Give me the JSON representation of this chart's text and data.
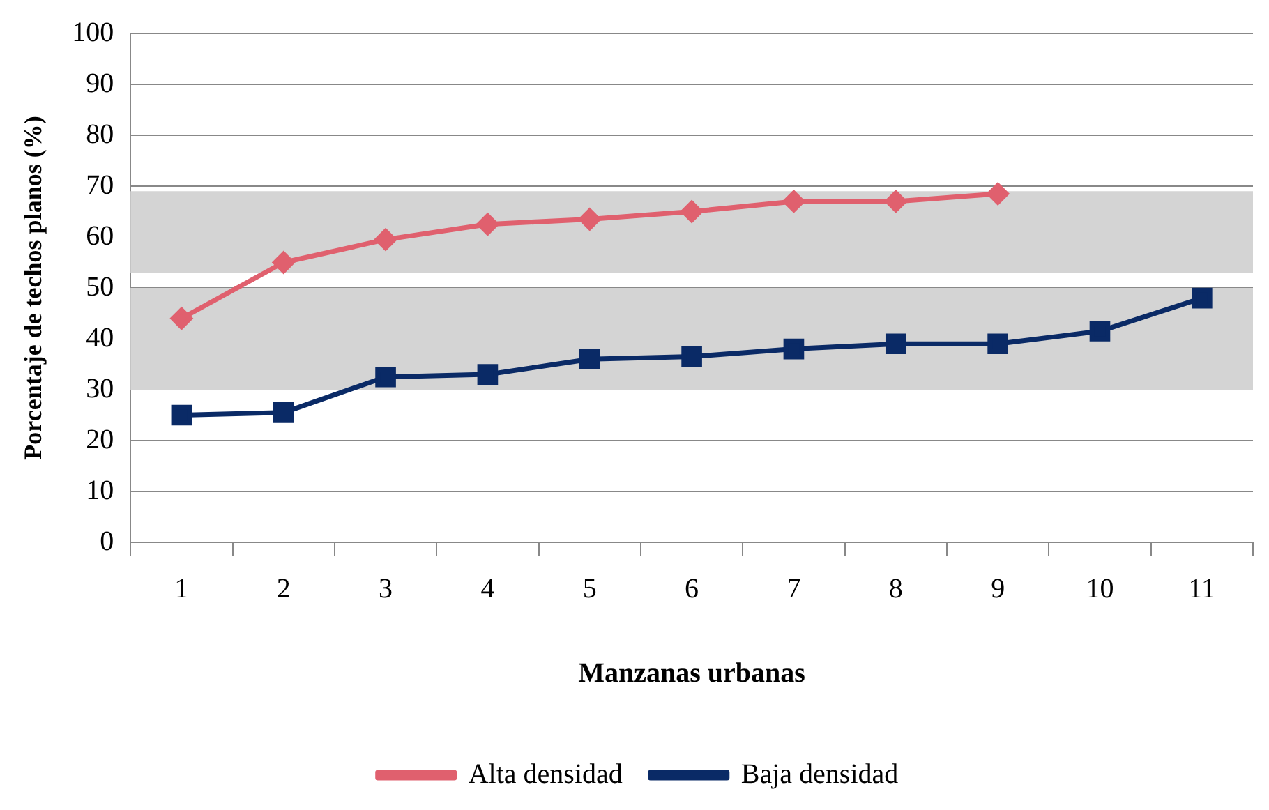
{
  "chart_data": {
    "type": "line",
    "xlabel": "Manzanas urbanas",
    "ylabel": "Porcentaje de techos planos (%)",
    "categories": [
      "1",
      "2",
      "3",
      "4",
      "5",
      "6",
      "7",
      "8",
      "9",
      "10",
      "11"
    ],
    "series": [
      {
        "name": "Alta densidad",
        "color": "#e0606e",
        "marker": "diamond",
        "values": [
          44,
          55,
          59.5,
          62.5,
          63.5,
          65,
          67,
          67,
          68.5,
          null,
          null
        ]
      },
      {
        "name": "Baja densidad",
        "color": "#0a2a66",
        "marker": "square",
        "values": [
          25,
          25.5,
          32.5,
          33,
          36,
          36.5,
          38,
          39,
          39,
          41.5,
          48
        ]
      }
    ],
    "ylim": [
      0,
      100
    ],
    "yticks": [
      0,
      10,
      20,
      30,
      40,
      50,
      60,
      70,
      80,
      90,
      100
    ],
    "bands": [
      {
        "axis": "y",
        "from": 53,
        "to": 69,
        "color": "#d4d4d4"
      },
      {
        "axis": "y",
        "from": 30,
        "to": 50,
        "color": "#d4d4d4"
      }
    ],
    "grid": "y",
    "legend": "bottom",
    "line_style": "solid"
  }
}
